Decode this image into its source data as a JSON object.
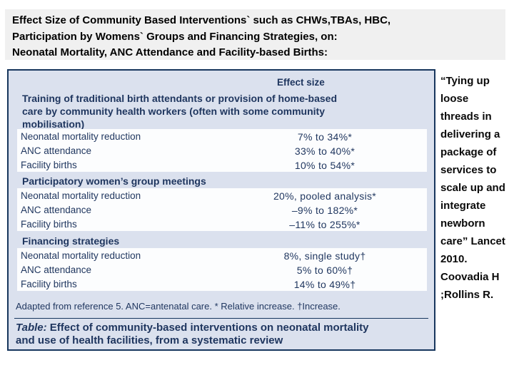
{
  "title": {
    "lines": [
      "Effect Size of Community Based Interventions` such as CHWs,TBAs, HBC,",
      "Participation by Womens` Groups and Financing Strategies, on:",
      "Neonatal Mortality, ANC Attendance and Facility-based Births:"
    ]
  },
  "table": {
    "effect_size_header": "Effect size",
    "sections": [
      {
        "header_lines": [
          "Training of traditional birth attendants or provision of home-based",
          "care by community health workers (often with some community",
          "mobilisation)"
        ],
        "rows": [
          {
            "label": "Neonatal mortality reduction",
            "value": "7% to 34%*"
          },
          {
            "label": "ANC attendance",
            "value": "33% to 40%*"
          },
          {
            "label": "Facility births",
            "value": "10% to 54%*"
          }
        ]
      },
      {
        "header_lines": [
          "Participatory women’s group meetings"
        ],
        "rows": [
          {
            "label": "Neonatal mortality reduction",
            "value": "20%, pooled analysis*"
          },
          {
            "label": "ANC attendance",
            "value": "–9% to 182%*"
          },
          {
            "label": "Facility births",
            "value": "–11% to 255%*"
          }
        ]
      },
      {
        "header_lines": [
          "Financing strategies"
        ],
        "rows": [
          {
            "label": "Neonatal mortality reduction",
            "value": "8%, single study†"
          },
          {
            "label": "ANC attendance",
            "value": "5% to 60%†"
          },
          {
            "label": "Facility births",
            "value": "14% to 49%†"
          }
        ]
      }
    ],
    "footnote": "Adapted from reference 5. ANC=antenatal care. * Relative increase. †Increase.",
    "caption": {
      "label": "Table:",
      "line1_rest": " Effect of community-based interventions on neonatal mortality",
      "line2": "and use of health facilities, from a systematic review"
    }
  },
  "quote": {
    "lines": [
      "“Tying up",
      "loose",
      "threads in",
      "delivering a",
      "package of",
      "services to",
      "scale up and",
      "integrate",
      "newborn",
      "care” Lancet",
      "2010.",
      "Coovadia H",
      ";Rollins R."
    ]
  },
  "colors": {
    "navy_text": "#1e355e",
    "panel_background": "#dbe1ee",
    "panel_border": "#17365d",
    "title_background": "#f0f0f0",
    "row_background": "#fcfdfe"
  }
}
